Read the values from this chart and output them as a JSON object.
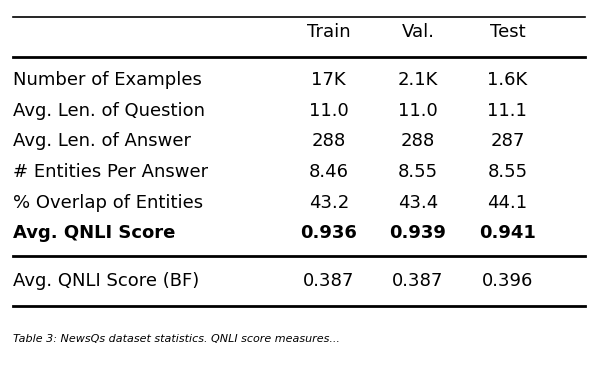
{
  "columns": [
    "",
    "Train",
    "Val.",
    "Test"
  ],
  "rows": [
    {
      "label": "Number of Examples",
      "train": "17K",
      "val": "2.1K",
      "test": "1.6K",
      "bold": false
    },
    {
      "label": "Avg. Len. of Question",
      "train": "11.0",
      "val": "11.0",
      "test": "11.1",
      "bold": false
    },
    {
      "label": "Avg. Len. of Answer",
      "train": "288",
      "val": "288",
      "test": "287",
      "bold": false
    },
    {
      "label": "# Entities Per Answer",
      "train": "8.46",
      "val": "8.55",
      "test": "8.55",
      "bold": false
    },
    {
      "label": "% Overlap of Entities",
      "train": "43.2",
      "val": "43.4",
      "test": "44.1",
      "bold": false
    },
    {
      "label": "Avg. QNLI Score",
      "train": "0.936",
      "val": "0.939",
      "test": "0.941",
      "bold": true
    }
  ],
  "separator_row": {
    "label": "Avg. QNLI Score (BF)",
    "train": "0.387",
    "val": "0.387",
    "test": "0.396",
    "bold": false
  },
  "caption": "Table 3: NewsQs dataset statistics. QNLI score measures...",
  "bg_color": "#ffffff",
  "text_color": "#000000",
  "line_color": "#000000",
  "header_fontsize": 13,
  "body_fontsize": 13
}
